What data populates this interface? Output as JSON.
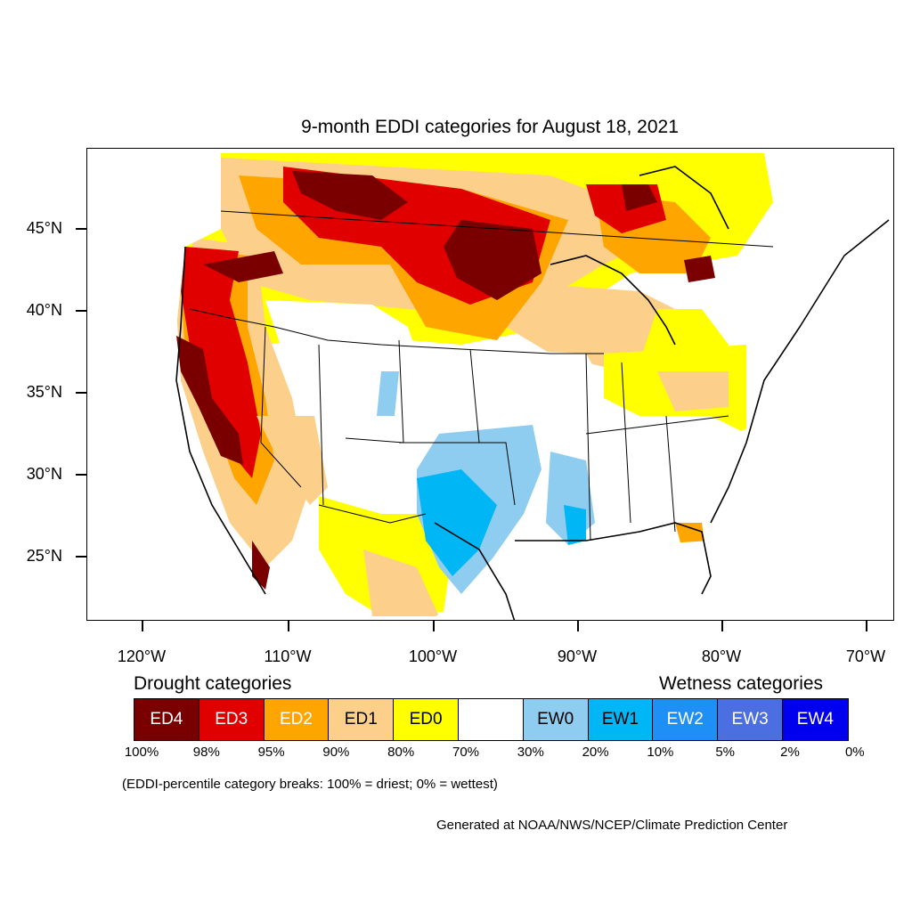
{
  "title": "9-month EDDI categories for August 18, 2021",
  "y_axis": {
    "ticks": [
      {
        "value": 45,
        "label": "45°N"
      },
      {
        "value": 40,
        "label": "40°N"
      },
      {
        "value": 35,
        "label": "35°N"
      },
      {
        "value": 30,
        "label": "30°N"
      },
      {
        "value": 25,
        "label": "25°N"
      }
    ]
  },
  "x_axis": {
    "ticks": [
      {
        "value": -120,
        "label": "120°W"
      },
      {
        "value": -110,
        "label": "110°W"
      },
      {
        "value": -100,
        "label": "100°W"
      },
      {
        "value": -90,
        "label": "90°W"
      },
      {
        "value": -80,
        "label": "80°W"
      },
      {
        "value": -70,
        "label": "70°W"
      }
    ]
  },
  "legend": {
    "drought_heading": "Drought categories",
    "wetness_heading": "Wetness categories",
    "categories": [
      {
        "label": "ED4",
        "color": "#7a0000",
        "text_color": "#ffffff"
      },
      {
        "label": "ED3",
        "color": "#e00000",
        "text_color": "#ffffff"
      },
      {
        "label": "ED2",
        "color": "#ffa500",
        "text_color": "#ffffff"
      },
      {
        "label": "ED1",
        "color": "#fcd08a",
        "text_color": "#000000"
      },
      {
        "label": "ED0",
        "color": "#ffff00",
        "text_color": "#000000"
      },
      {
        "label": "",
        "color": "#ffffff",
        "text_color": "#000000"
      },
      {
        "label": "EW0",
        "color": "#8ecdf0",
        "text_color": "#000000"
      },
      {
        "label": "EW1",
        "color": "#00b6f5",
        "text_color": "#000000"
      },
      {
        "label": "EW2",
        "color": "#1e8ff5",
        "text_color": "#ffffff"
      },
      {
        "label": "EW3",
        "color": "#4b6ee0",
        "text_color": "#ffffff"
      },
      {
        "label": "EW4",
        "color": "#0000ee",
        "text_color": "#ffffff"
      }
    ],
    "breaks": [
      "100%",
      "98%",
      "95%",
      "90%",
      "80%",
      "70%",
      "30%",
      "20%",
      "10%",
      "5%",
      "2%",
      "0%"
    ]
  },
  "note": "(EDDI-percentile category breaks: 100% = driest; 0% = wettest)",
  "credit": "Generated at NOAA/NWS/NCEP/Climate Prediction Center"
}
